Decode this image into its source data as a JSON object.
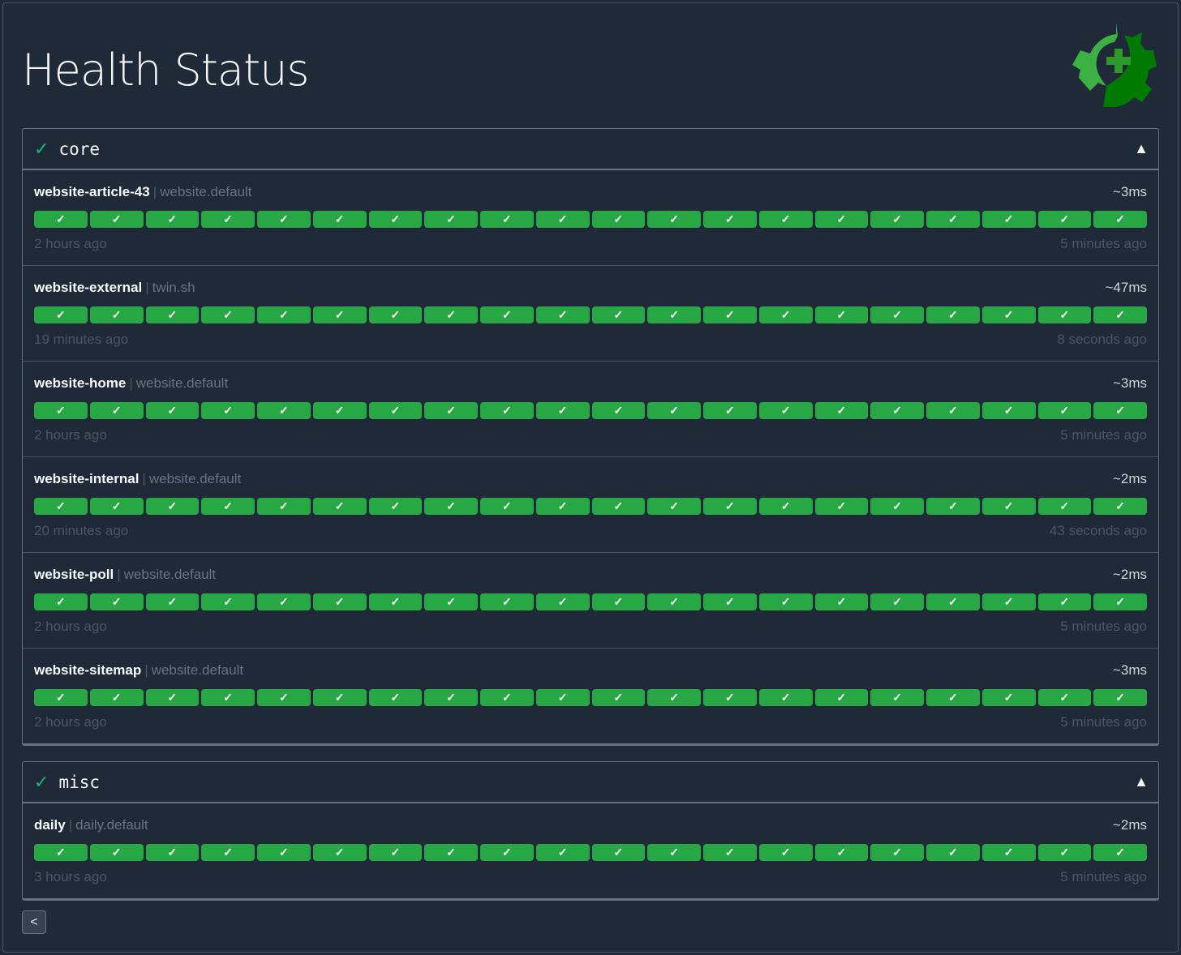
{
  "header": {
    "title": "Health Status",
    "logo_colors": [
      "#3cb043",
      "#007a00",
      "#2e9a2e"
    ]
  },
  "colors": {
    "success": "#28a745",
    "check": "#10b981",
    "background": "#1f2937"
  },
  "groups": [
    {
      "name": "core",
      "status_icon": "✓",
      "toggle": "▲",
      "endpoints": [
        {
          "name": "website-article-43",
          "group": "website.default",
          "response_time": "~3ms",
          "oldest": "2 hours ago",
          "newest": "5 minutes ago",
          "results": [
            "success",
            "success",
            "success",
            "success",
            "success",
            "success",
            "success",
            "success",
            "success",
            "success",
            "success",
            "success",
            "success",
            "success",
            "success",
            "success",
            "success",
            "success",
            "success",
            "success"
          ]
        },
        {
          "name": "website-external",
          "group": "twin.sh",
          "response_time": "~47ms",
          "oldest": "19 minutes ago",
          "newest": "8 seconds ago",
          "results": [
            "success",
            "success",
            "success",
            "success",
            "success",
            "success",
            "success",
            "success",
            "success",
            "success",
            "success",
            "success",
            "success",
            "success",
            "success",
            "success",
            "success",
            "success",
            "success",
            "success"
          ]
        },
        {
          "name": "website-home",
          "group": "website.default",
          "response_time": "~3ms",
          "oldest": "2 hours ago",
          "newest": "5 minutes ago",
          "results": [
            "success",
            "success",
            "success",
            "success",
            "success",
            "success",
            "success",
            "success",
            "success",
            "success",
            "success",
            "success",
            "success",
            "success",
            "success",
            "success",
            "success",
            "success",
            "success",
            "success"
          ]
        },
        {
          "name": "website-internal",
          "group": "website.default",
          "response_time": "~2ms",
          "oldest": "20 minutes ago",
          "newest": "43 seconds ago",
          "results": [
            "success",
            "success",
            "success",
            "success",
            "success",
            "success",
            "success",
            "success",
            "success",
            "success",
            "success",
            "success",
            "success",
            "success",
            "success",
            "success",
            "success",
            "success",
            "success",
            "success"
          ]
        },
        {
          "name": "website-poll",
          "group": "website.default",
          "response_time": "~2ms",
          "oldest": "2 hours ago",
          "newest": "5 minutes ago",
          "results": [
            "success",
            "success",
            "success",
            "success",
            "success",
            "success",
            "success",
            "success",
            "success",
            "success",
            "success",
            "success",
            "success",
            "success",
            "success",
            "success",
            "success",
            "success",
            "success",
            "success"
          ]
        },
        {
          "name": "website-sitemap",
          "group": "website.default",
          "response_time": "~3ms",
          "oldest": "2 hours ago",
          "newest": "5 minutes ago",
          "results": [
            "success",
            "success",
            "success",
            "success",
            "success",
            "success",
            "success",
            "success",
            "success",
            "success",
            "success",
            "success",
            "success",
            "success",
            "success",
            "success",
            "success",
            "success",
            "success",
            "success"
          ]
        }
      ]
    },
    {
      "name": "misc",
      "status_icon": "✓",
      "toggle": "▲",
      "endpoints": [
        {
          "name": "daily",
          "group": "daily.default",
          "response_time": "~2ms",
          "oldest": "3 hours ago",
          "newest": "5 minutes ago",
          "results": [
            "success",
            "success",
            "success",
            "success",
            "success",
            "success",
            "success",
            "success",
            "success",
            "success",
            "success",
            "success",
            "success",
            "success",
            "success",
            "success",
            "success",
            "success",
            "success",
            "success"
          ]
        }
      ]
    }
  ],
  "result_icon": "✓",
  "pagination": {
    "back_label": "<"
  }
}
